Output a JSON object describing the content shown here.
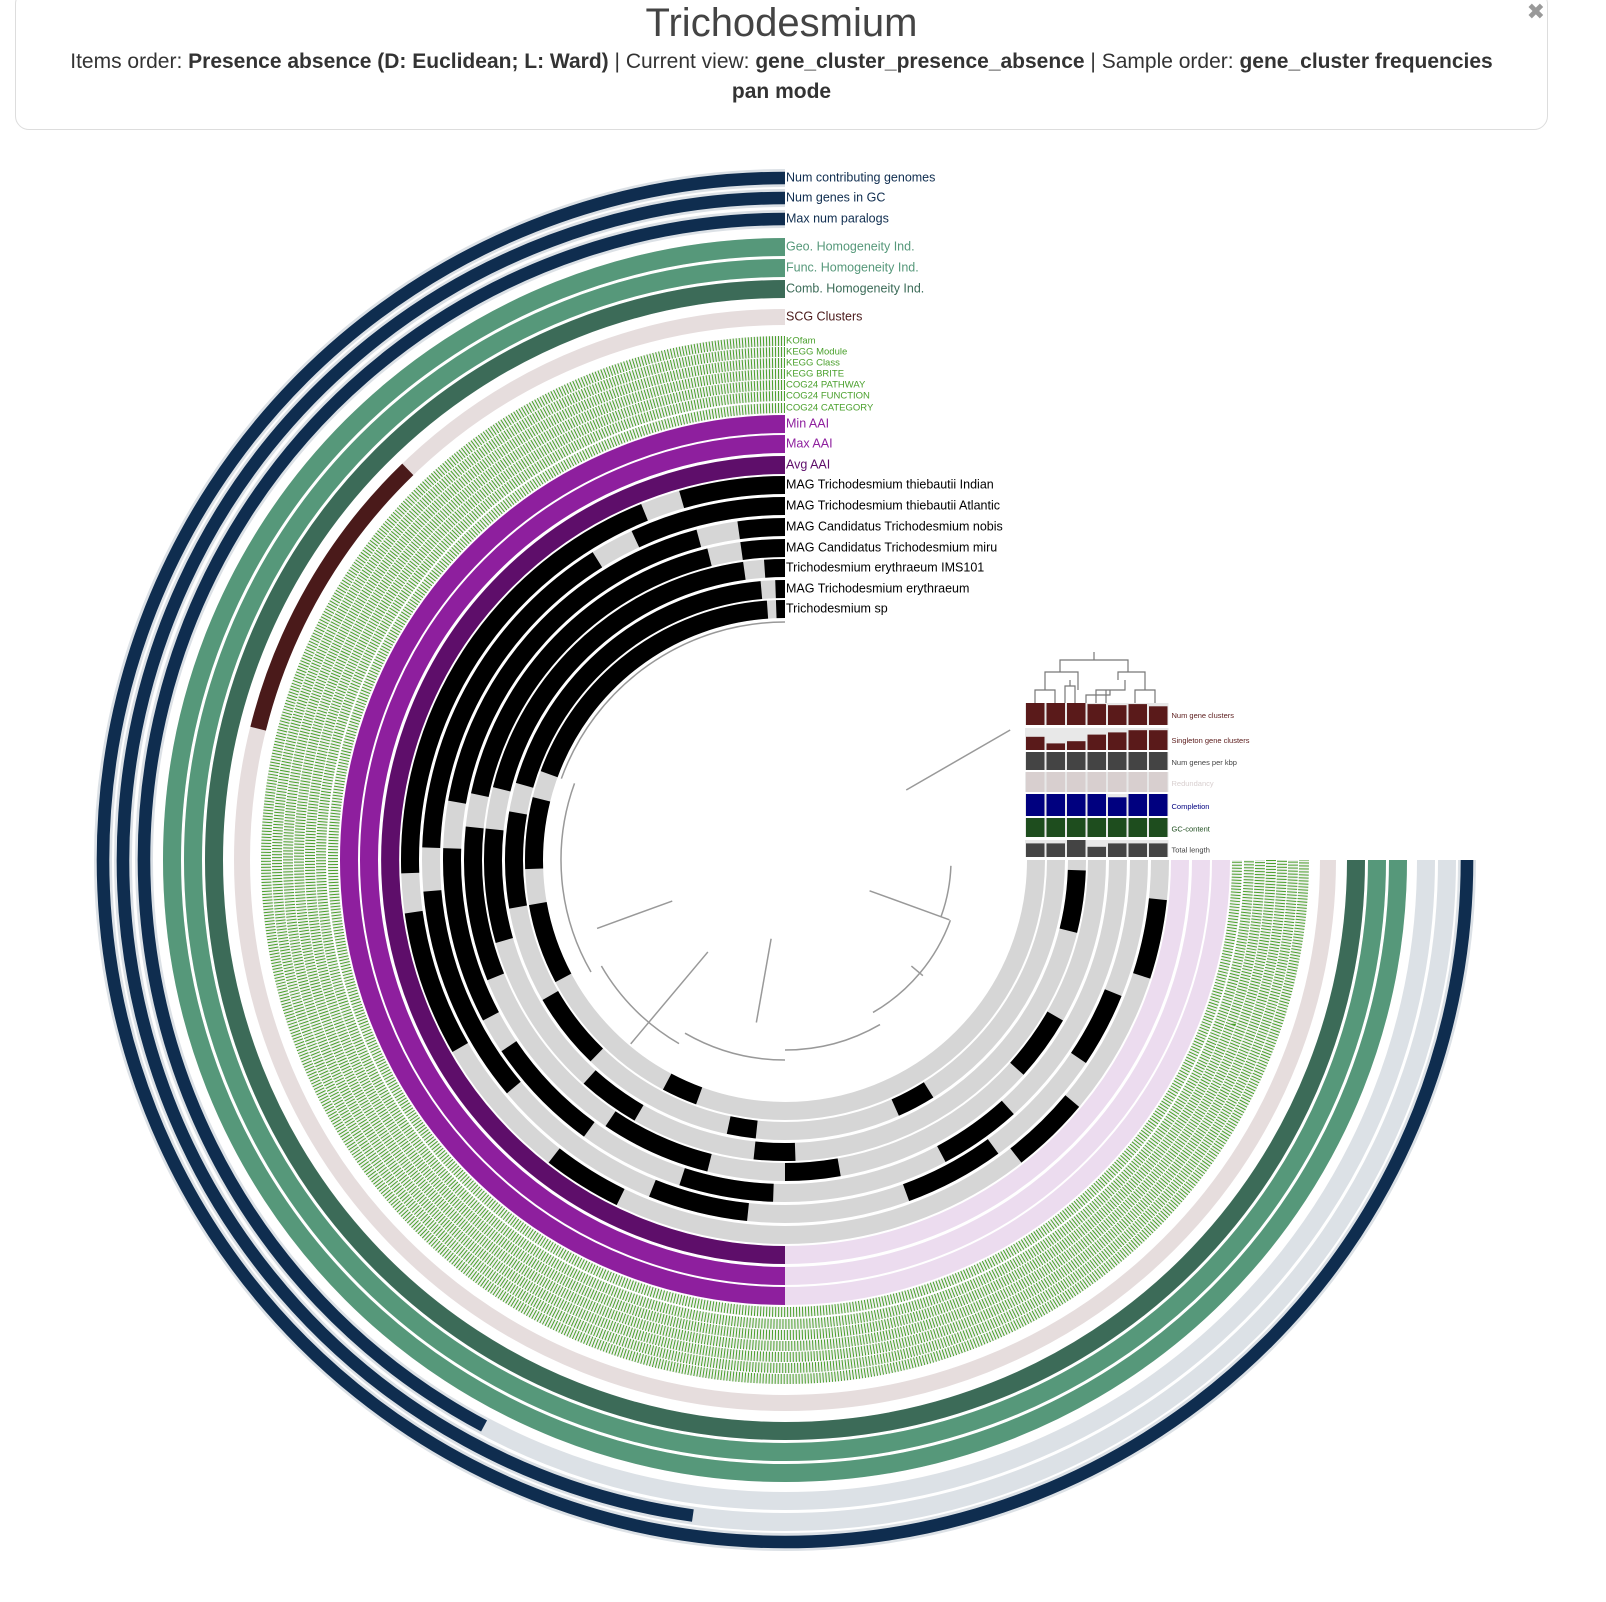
{
  "header": {
    "title": "Trichodesmium",
    "items_order_label": "Items order:",
    "items_order": "Presence absence (D: Euclidean; L: Ward)",
    "separator": "|",
    "current_view_label": "Current view:",
    "current_view": "gene_cluster_presence_absence",
    "sample_order_label": "Sample order:",
    "sample_order": "gene_cluster frequencies",
    "mode": "pan mode",
    "close": "✖"
  },
  "layers": [
    {
      "label": "Num contributing genomes",
      "color": "#0f2d4f"
    },
    {
      "label": "Num genes in GC",
      "color": "#0f2d4f"
    },
    {
      "label": "Max num paralogs",
      "color": "#0f2d4f"
    },
    {
      "label": "Geo. Homogeneity Ind.",
      "color": "#56987a"
    },
    {
      "label": "Func. Homogeneity Ind.",
      "color": "#56987a"
    },
    {
      "label": "Comb. Homogeneity Ind.",
      "color": "#3c6b58"
    },
    {
      "label": "SCG Clusters",
      "color": "#4a1a1a"
    },
    {
      "label": "KOfam",
      "color": "#4aa02c"
    },
    {
      "label": "KEGG Module",
      "color": "#4aa02c"
    },
    {
      "label": "KEGG Class",
      "color": "#4aa02c"
    },
    {
      "label": "KEGG BRITE",
      "color": "#4aa02c"
    },
    {
      "label": "COG24 PATHWAY",
      "color": "#4aa02c"
    },
    {
      "label": "COG24 FUNCTION",
      "color": "#4aa02c"
    },
    {
      "label": "COG24 CATEGORY",
      "color": "#4aa02c"
    },
    {
      "label": "Min AAI",
      "color": "#8e1f9e"
    },
    {
      "label": "Max AAI",
      "color": "#8e1f9e"
    },
    {
      "label": "Avg AAI",
      "color": "#5e0e6a"
    },
    {
      "label": "MAG Trichodesmium thiebautii Indian",
      "color": "#000000"
    },
    {
      "label": "MAG Trichodesmium thiebautii Atlantic",
      "color": "#000000"
    },
    {
      "label": "MAG Candidatus Trichodesmium nobis",
      "color": "#000000"
    },
    {
      "label": "MAG Candidatus Trichodesmium miru",
      "color": "#000000"
    },
    {
      "label": "Trichodesmium erythraeum IMS101",
      "color": "#000000"
    },
    {
      "label": "MAG Trichodesmium erythraeum",
      "color": "#000000"
    },
    {
      "label": "Trichodesmium sp",
      "color": "#000000"
    }
  ],
  "samples_panel": {
    "layers": [
      {
        "label": "Num gene clusters",
        "color": "#5a1a1a"
      },
      {
        "label": "Singleton gene clusters",
        "color": "#5a1a1a"
      },
      {
        "label": "Num genes per kbp",
        "color": "#444444"
      },
      {
        "label": "Redundancy",
        "color": "#d8cfcf"
      },
      {
        "label": "Completion",
        "color": "#00007f"
      },
      {
        "label": "GC-content",
        "color": "#1e4d1e"
      },
      {
        "label": "Total length",
        "color": "#444444"
      }
    ]
  }
}
